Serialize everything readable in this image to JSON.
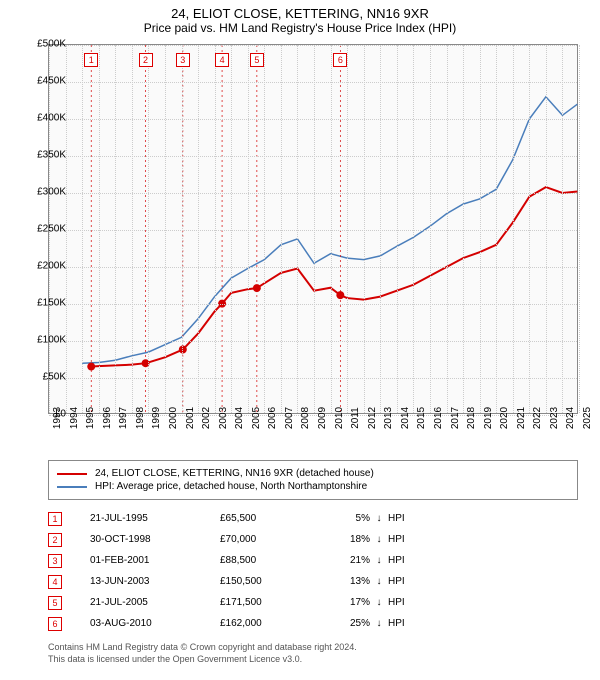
{
  "title": "24, ELIOT CLOSE, KETTERING, NN16 9XR",
  "subtitle": "Price paid vs. HM Land Registry's House Price Index (HPI)",
  "chart": {
    "type": "line",
    "background_color": "#fafafa",
    "grid_color": "#cccccc",
    "border_color": "#888888",
    "x_years": [
      1993,
      1994,
      1995,
      1996,
      1997,
      1998,
      1999,
      2000,
      2001,
      2002,
      2003,
      2004,
      2005,
      2006,
      2007,
      2008,
      2009,
      2010,
      2011,
      2012,
      2013,
      2014,
      2015,
      2016,
      2017,
      2018,
      2019,
      2020,
      2021,
      2022,
      2023,
      2024,
      2025
    ],
    "y_ticks": [
      0,
      50000,
      100000,
      150000,
      200000,
      250000,
      300000,
      350000,
      400000,
      450000,
      500000
    ],
    "y_tick_labels": [
      "£0",
      "£50K",
      "£100K",
      "£150K",
      "£200K",
      "£250K",
      "£300K",
      "£350K",
      "£400K",
      "£450K",
      "£500K"
    ],
    "xlim": [
      1993,
      2025
    ],
    "ylim": [
      0,
      500000
    ],
    "series_price": {
      "label": "24, ELIOT CLOSE, KETTERING, NN16 9XR (detached house)",
      "color": "#d40000",
      "line_width": 2,
      "points": [
        [
          1995.55,
          65500
        ],
        [
          1996,
          66000
        ],
        [
          1997,
          67000
        ],
        [
          1998,
          68000
        ],
        [
          1998.83,
          70000
        ],
        [
          1999,
          71000
        ],
        [
          2000,
          78000
        ],
        [
          2001.08,
          88500
        ],
        [
          2002,
          110000
        ],
        [
          2003,
          140000
        ],
        [
          2003.45,
          150500
        ],
        [
          2004,
          165000
        ],
        [
          2005,
          170000
        ],
        [
          2005.55,
          171500
        ],
        [
          2006,
          178000
        ],
        [
          2007,
          192000
        ],
        [
          2008,
          198000
        ],
        [
          2009,
          168000
        ],
        [
          2010,
          172000
        ],
        [
          2010.59,
          162000
        ],
        [
          2011,
          158000
        ],
        [
          2012,
          156000
        ],
        [
          2013,
          160000
        ],
        [
          2014,
          168000
        ],
        [
          2015,
          176000
        ],
        [
          2016,
          188000
        ],
        [
          2017,
          200000
        ],
        [
          2018,
          212000
        ],
        [
          2019,
          220000
        ],
        [
          2020,
          230000
        ],
        [
          2021,
          260000
        ],
        [
          2022,
          295000
        ],
        [
          2023,
          308000
        ],
        [
          2024,
          300000
        ],
        [
          2024.9,
          302000
        ]
      ],
      "markers": [
        {
          "n": "1",
          "year": 1995.55,
          "value": 65500
        },
        {
          "n": "2",
          "year": 1998.83,
          "value": 70000
        },
        {
          "n": "3",
          "year": 2001.08,
          "value": 88500
        },
        {
          "n": "4",
          "year": 2003.45,
          "value": 150500
        },
        {
          "n": "5",
          "year": 2005.55,
          "value": 171500
        },
        {
          "n": "6",
          "year": 2010.59,
          "value": 162000
        }
      ]
    },
    "series_hpi": {
      "label": "HPI: Average price, detached house, North Northamptonshire",
      "color": "#4a7ebb",
      "line_width": 1.5,
      "points": [
        [
          1995,
          70000
        ],
        [
          1996,
          71000
        ],
        [
          1997,
          74000
        ],
        [
          1998,
          80000
        ],
        [
          1999,
          85000
        ],
        [
          2000,
          95000
        ],
        [
          2001,
          105000
        ],
        [
          2002,
          130000
        ],
        [
          2003,
          160000
        ],
        [
          2004,
          185000
        ],
        [
          2005,
          198000
        ],
        [
          2006,
          210000
        ],
        [
          2007,
          230000
        ],
        [
          2008,
          238000
        ],
        [
          2009,
          205000
        ],
        [
          2010,
          218000
        ],
        [
          2011,
          212000
        ],
        [
          2012,
          210000
        ],
        [
          2013,
          215000
        ],
        [
          2014,
          228000
        ],
        [
          2015,
          240000
        ],
        [
          2016,
          255000
        ],
        [
          2017,
          272000
        ],
        [
          2018,
          285000
        ],
        [
          2019,
          292000
        ],
        [
          2020,
          305000
        ],
        [
          2021,
          345000
        ],
        [
          2022,
          400000
        ],
        [
          2023,
          430000
        ],
        [
          2024,
          405000
        ],
        [
          2024.9,
          420000
        ]
      ]
    }
  },
  "legend": {
    "row1": "24, ELIOT CLOSE, KETTERING, NN16 9XR (detached house)",
    "row2": "HPI: Average price, detached house, North Northamptonshire"
  },
  "sales": [
    {
      "n": "1",
      "date": "21-JUL-1995",
      "price": "£65,500",
      "pct": "5%",
      "hpi": "HPI"
    },
    {
      "n": "2",
      "date": "30-OCT-1998",
      "price": "£70,000",
      "pct": "18%",
      "hpi": "HPI"
    },
    {
      "n": "3",
      "date": "01-FEB-2001",
      "price": "£88,500",
      "pct": "21%",
      "hpi": "HPI"
    },
    {
      "n": "4",
      "date": "13-JUN-2003",
      "price": "£150,500",
      "pct": "13%",
      "hpi": "HPI"
    },
    {
      "n": "5",
      "date": "21-JUL-2005",
      "price": "£171,500",
      "pct": "17%",
      "hpi": "HPI"
    },
    {
      "n": "6",
      "date": "03-AUG-2010",
      "price": "£162,000",
      "pct": "25%",
      "hpi": "HPI"
    }
  ],
  "arrow": "↓",
  "footer_line1": "Contains HM Land Registry data © Crown copyright and database right 2024.",
  "footer_line2": "This data is licensed under the Open Government Licence v3.0."
}
